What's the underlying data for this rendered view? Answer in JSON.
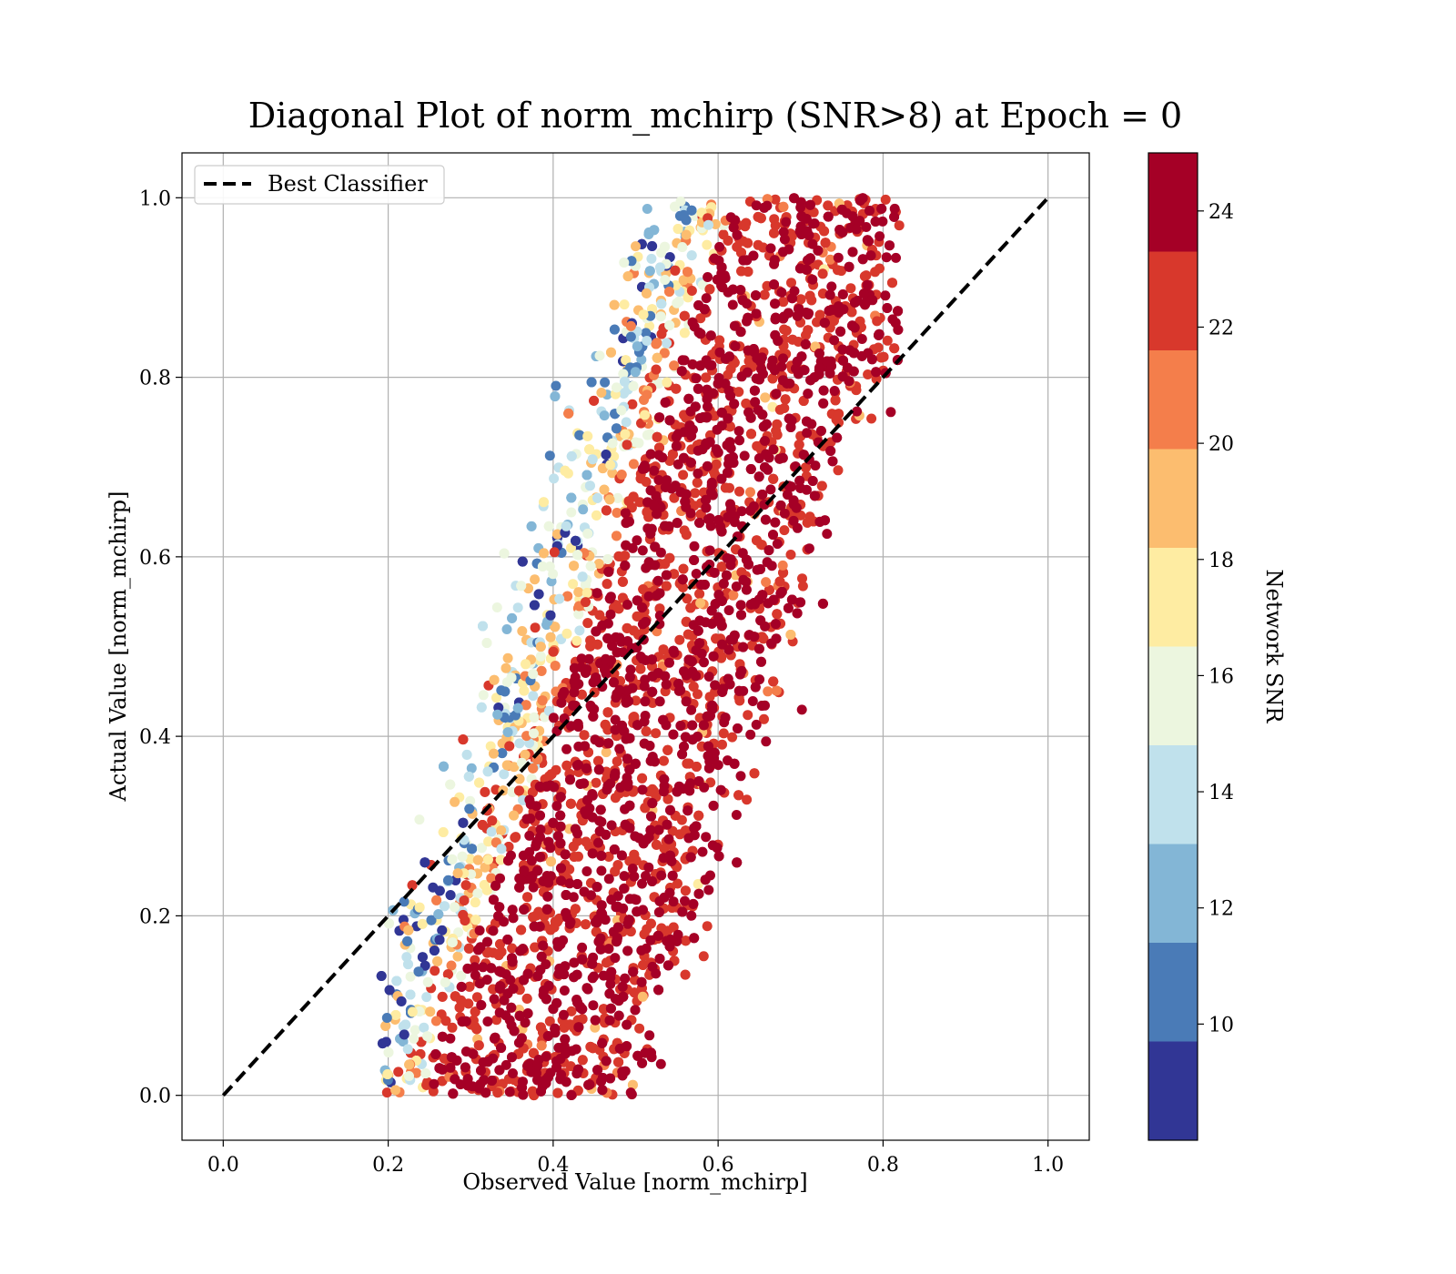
{
  "chart_data": {
    "type": "scatter",
    "title": "Diagonal Plot of norm_mchirp (SNR>8) at Epoch = 0",
    "xlabel": "Observed Value [norm_mchirp]",
    "ylabel": "Actual Value [norm_mchirp]",
    "xlim": [
      -0.05,
      1.05
    ],
    "ylim": [
      -0.05,
      1.05
    ],
    "x_ticks": [
      "0.0",
      "0.2",
      "0.4",
      "0.6",
      "0.8",
      "1.0"
    ],
    "y_ticks": [
      "0.0",
      "0.2",
      "0.4",
      "0.6",
      "0.8",
      "1.0"
    ],
    "grid": true,
    "legend": {
      "placement": "upper-left",
      "entries": [
        {
          "label": "Best Classifier",
          "style": "black dashed line"
        }
      ]
    },
    "reference_line": {
      "label": "Best Classifier",
      "x": [
        0.0,
        1.0
      ],
      "y": [
        0.0,
        1.0
      ],
      "color": "#000000",
      "style": "dashed"
    },
    "point_cloud": {
      "description_of_distribution": "dense band of points around y = 1.4*(x-0.5)+0.5 roughly; low SNR points on left/top edge",
      "x_range": [
        0.19,
        0.82
      ],
      "y_range": [
        0.0,
        1.0
      ],
      "dominant_color": "#a50026"
    },
    "colorbar": {
      "label": "Network SNR",
      "range": [
        8,
        25
      ],
      "ticks": [
        "10",
        "12",
        "14",
        "16",
        "18",
        "20",
        "22",
        "24"
      ],
      "tick_values": [
        10,
        12,
        14,
        16,
        18,
        20,
        22,
        24
      ],
      "bands": [
        {
          "from": 8,
          "to": 9.7,
          "color": "#313695"
        },
        {
          "from": 9.7,
          "to": 11.4,
          "color": "#4a7bb7"
        },
        {
          "from": 11.4,
          "to": 13.1,
          "color": "#83b6d6"
        },
        {
          "from": 13.1,
          "to": 14.8,
          "color": "#c0e1ec"
        },
        {
          "from": 14.8,
          "to": 16.5,
          "color": "#ecf6df"
        },
        {
          "from": 16.5,
          "to": 18.2,
          "color": "#feeca2"
        },
        {
          "from": 18.2,
          "to": 19.9,
          "color": "#fcbd6f"
        },
        {
          "from": 19.9,
          "to": 21.6,
          "color": "#f47e4b"
        },
        {
          "from": 21.6,
          "to": 23.3,
          "color": "#d8382c"
        },
        {
          "from": 23.3,
          "to": 25,
          "color": "#a50026"
        }
      ]
    }
  }
}
